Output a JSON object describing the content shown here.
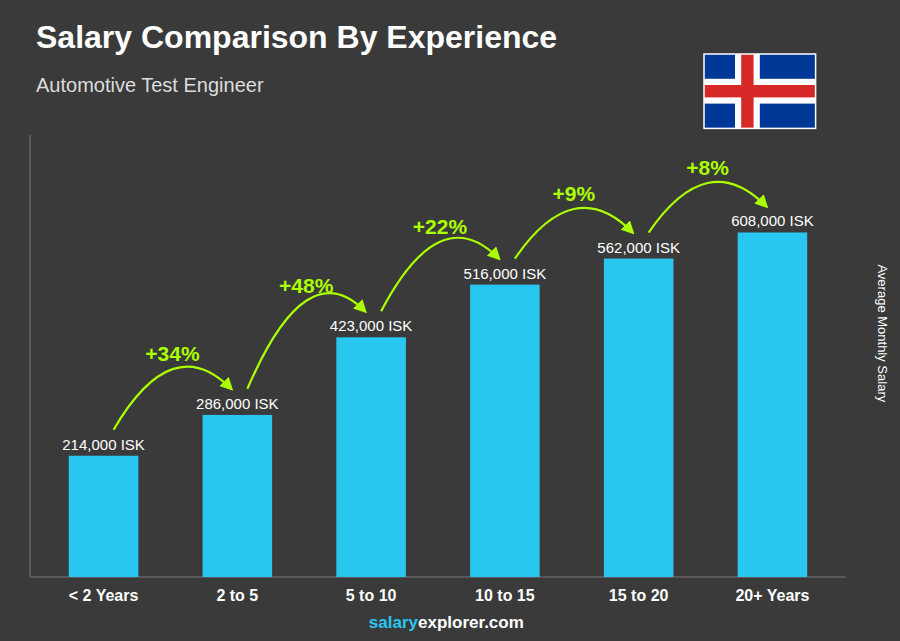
{
  "chart_data": {
    "type": "bar",
    "title": "Salary Comparison By Experience",
    "subtitle": "Automotive Test Engineer",
    "ylabel": "Average Monthly Salary",
    "footer": [
      "salary",
      "explorer.com"
    ],
    "categories": [
      "< 2 Years",
      "2 to 5",
      "5 to 10",
      "10 to 15",
      "15 to 20",
      "20+ Years"
    ],
    "values": [
      214000,
      286000,
      423000,
      516000,
      562000,
      608000
    ],
    "value_labels": [
      "214,000 ISK",
      "286,000 ISK",
      "423,000 ISK",
      "516,000 ISK",
      "562,000 ISK",
      "608,000 ISK"
    ],
    "annotations": [
      null,
      "+34%",
      "+48%",
      "+22%",
      "+9%",
      "+8%"
    ],
    "color": "#29c6f0",
    "ylim": [
      0,
      780000
    ],
    "data_labels": true,
    "tick_labels": "x",
    "grid": false
  }
}
